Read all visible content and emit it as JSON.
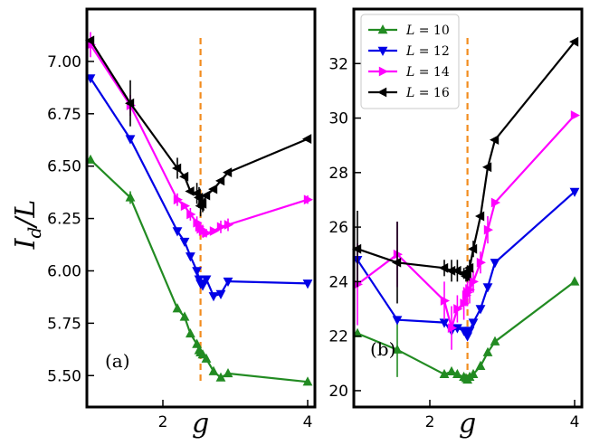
{
  "figure": {
    "ylabel": "I_d / L",
    "ylabel_main": "I",
    "ylabel_sub": "d",
    "ylabel_tail": "/L",
    "xlabel": "g",
    "critical_line_color": "#f28c1e"
  },
  "chart_data": [
    {
      "type": "line",
      "panel_label": "(a)",
      "xlabel": "g",
      "ylabel": "I_d/L",
      "xlim": [
        0.95,
        4.1
      ],
      "ylim": [
        5.35,
        7.25
      ],
      "xticks": [
        2,
        4
      ],
      "yticks": [
        5.5,
        5.75,
        6.0,
        6.25,
        6.5,
        6.75,
        7.0
      ],
      "ytick_labels": [
        "5.50",
        "5.75",
        "6.00",
        "6.25",
        "6.50",
        "6.75",
        "7.00"
      ],
      "critical_g": 2.52,
      "series": [
        {
          "name": "L = 10",
          "L": "10",
          "color": "#228b22",
          "marker": "triangle-up",
          "x": [
            1.0,
            1.55,
            2.2,
            2.3,
            2.38,
            2.47,
            2.5,
            2.52,
            2.55,
            2.6,
            2.7,
            2.8,
            2.9,
            4.0
          ],
          "y": [
            6.53,
            6.35,
            5.82,
            5.78,
            5.7,
            5.65,
            5.62,
            5.61,
            5.6,
            5.58,
            5.52,
            5.49,
            5.51,
            5.47
          ],
          "err": [
            0,
            0.03,
            0,
            0,
            0,
            0,
            0,
            0,
            0,
            0,
            0,
            0,
            0,
            0
          ]
        },
        {
          "name": "L = 12",
          "L": "12",
          "color": "#0000e6",
          "marker": "triangle-down",
          "x": [
            1.0,
            1.55,
            2.2,
            2.3,
            2.38,
            2.47,
            2.5,
            2.52,
            2.55,
            2.6,
            2.7,
            2.8,
            2.9,
            4.0
          ],
          "y": [
            6.92,
            6.63,
            6.19,
            6.14,
            6.07,
            6.0,
            5.96,
            5.94,
            5.93,
            5.96,
            5.88,
            5.89,
            5.95,
            5.94
          ],
          "err": [
            0,
            0,
            0,
            0,
            0,
            0,
            0,
            0,
            0,
            0,
            0,
            0,
            0,
            0
          ]
        },
        {
          "name": "L = 14",
          "L": "14",
          "color": "#ff00ff",
          "marker": "triangle-right",
          "x": [
            1.0,
            1.55,
            2.2,
            2.3,
            2.38,
            2.47,
            2.5,
            2.52,
            2.55,
            2.6,
            2.7,
            2.8,
            2.9,
            4.0
          ],
          "y": [
            7.08,
            6.79,
            6.34,
            6.31,
            6.27,
            6.23,
            6.21,
            6.2,
            6.19,
            6.18,
            6.19,
            6.21,
            6.22,
            6.34
          ],
          "err": [
            0.06,
            0.05,
            0.03,
            0,
            0.03,
            0.03,
            0.02,
            0.03,
            0.03,
            0.02,
            0,
            0.03,
            0.03,
            0.02
          ]
        },
        {
          "name": "L = 16",
          "L": "16",
          "color": "#000000",
          "marker": "triangle-left",
          "x": [
            1.0,
            1.55,
            2.2,
            2.3,
            2.38,
            2.47,
            2.5,
            2.52,
            2.55,
            2.6,
            2.7,
            2.8,
            2.9,
            4.0
          ],
          "y": [
            7.1,
            6.8,
            6.49,
            6.45,
            6.38,
            6.37,
            6.35,
            6.31,
            6.32,
            6.36,
            6.39,
            6.43,
            6.47,
            6.63
          ],
          "err": [
            0,
            0.11,
            0.05,
            0,
            0,
            0.05,
            0.05,
            0.05,
            0.04,
            0,
            0,
            0,
            0,
            0
          ]
        }
      ]
    },
    {
      "type": "line",
      "panel_label": "(b)",
      "xlabel": "g",
      "xlim": [
        0.95,
        4.1
      ],
      "ylim": [
        19.4,
        34.0
      ],
      "xticks": [
        2,
        4
      ],
      "yticks": [
        20,
        22,
        24,
        26,
        28,
        30,
        32
      ],
      "ytick_labels": [
        "20",
        "22",
        "24",
        "26",
        "28",
        "30",
        "32"
      ],
      "critical_g": 2.52,
      "legend_position": "top-left",
      "series": [
        {
          "name": "L = 10",
          "L": "10",
          "color": "#228b22",
          "marker": "triangle-up",
          "x": [
            1.0,
            1.55,
            2.2,
            2.3,
            2.38,
            2.47,
            2.5,
            2.52,
            2.55,
            2.6,
            2.7,
            2.8,
            2.9,
            4.0
          ],
          "y": [
            22.1,
            21.5,
            20.6,
            20.7,
            20.6,
            20.5,
            20.45,
            20.4,
            20.5,
            20.6,
            20.9,
            21.4,
            21.8,
            24.0
          ],
          "err": [
            0,
            1.0,
            0,
            0,
            0,
            0,
            0,
            0,
            0,
            0,
            0,
            0,
            0,
            0
          ]
        },
        {
          "name": "L = 12",
          "L": "12",
          "color": "#0000e6",
          "marker": "triangle-down",
          "x": [
            1.0,
            1.55,
            2.2,
            2.3,
            2.38,
            2.47,
            2.5,
            2.52,
            2.55,
            2.6,
            2.7,
            2.8,
            2.9,
            4.0
          ],
          "y": [
            24.8,
            22.6,
            22.5,
            22.2,
            22.3,
            22.2,
            22.1,
            22.0,
            22.2,
            22.5,
            23.0,
            23.8,
            24.7,
            27.3
          ],
          "err": [
            0,
            0,
            0,
            0,
            0,
            0,
            0,
            0,
            0,
            0,
            0,
            0,
            0,
            0
          ]
        },
        {
          "name": "L = 14",
          "L": "14",
          "color": "#ff00ff",
          "marker": "triangle-right",
          "x": [
            1.0,
            1.55,
            2.2,
            2.3,
            2.38,
            2.47,
            2.5,
            2.52,
            2.55,
            2.6,
            2.7,
            2.8,
            2.9,
            4.0
          ],
          "y": [
            23.9,
            25.0,
            23.3,
            22.3,
            23.0,
            23.2,
            23.5,
            23.6,
            23.7,
            24.0,
            24.7,
            25.9,
            26.9,
            30.1
          ],
          "err": [
            1.5,
            1.2,
            0.7,
            0.8,
            0.5,
            0.6,
            0.4,
            0.5,
            0.5,
            0.4,
            0.4,
            0.5,
            0,
            0
          ]
        },
        {
          "name": "L = 16",
          "L": "16",
          "color": "#000000",
          "marker": "triangle-left",
          "x": [
            1.0,
            1.55,
            2.2,
            2.3,
            2.38,
            2.47,
            2.5,
            2.52,
            2.55,
            2.6,
            2.7,
            2.8,
            2.9,
            4.0
          ],
          "y": [
            25.2,
            24.7,
            24.5,
            24.4,
            24.4,
            24.3,
            24.2,
            24.3,
            24.5,
            25.2,
            26.4,
            28.2,
            29.2,
            32.8
          ],
          "err": [
            1.4,
            1.5,
            0.3,
            0.4,
            0.4,
            0.2,
            0.2,
            0.3,
            0.3,
            0.3,
            0,
            0,
            0,
            0
          ]
        }
      ]
    }
  ]
}
